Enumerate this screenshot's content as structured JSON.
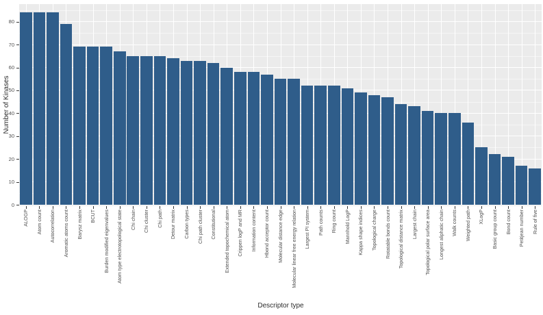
{
  "chart_data": {
    "type": "bar",
    "title": "",
    "xlabel": "Descriptor type",
    "ylabel": "Number of Kinases",
    "ylim": [
      0,
      88
    ],
    "yticks": [
      0,
      10,
      20,
      30,
      40,
      50,
      60,
      70,
      80
    ],
    "grid": "major-and-minor-white-on-gray",
    "legend": "none",
    "categories": [
      "ALOGP",
      "Atom count",
      "Autocorrelation",
      "Aromatic atoms count",
      "Barysz matrix",
      "BCUT",
      "Burden modified eigenvalues",
      "Atom type electrotopological state",
      "Chi chain",
      "Chi cluster",
      "Chi path",
      "Detour matrix",
      "Carbon types",
      "Chi path cluster",
      "Constitutional",
      "Extended topochemical atom",
      "Crippen logP and MR",
      "Information content",
      "Hbond acceptor count",
      "Molecular distance edge",
      "Molecular linear free energy relation",
      "Largest PI system",
      "Path counts",
      "Ring count",
      "Mannhold LogP",
      "Kappa shape indices",
      "Topological charge",
      "Rotatable bonds count",
      "Topological distance matrix",
      "Largest chain",
      "Topological polar surface area",
      "Longest aliphatic chain",
      "Walk counts",
      "Weighted path",
      "XLogP",
      "Basic group count",
      "Bond count",
      "Petitjean number",
      "Rule of five"
    ],
    "values": [
      84,
      84,
      84,
      79,
      69,
      69,
      69,
      67,
      65,
      65,
      65,
      64,
      63,
      63,
      62,
      60,
      58,
      58,
      57,
      55,
      55,
      52,
      52,
      52,
      51,
      49,
      48,
      47,
      44,
      43,
      41,
      40,
      40,
      36,
      25,
      22,
      21,
      17,
      16
    ],
    "colors": {
      "bar_fill": "#2F5D8A",
      "panel_background": "#EBEBEB",
      "grid_major": "#FFFFFF",
      "grid_minor": "#F5F5F5",
      "tick_text": "#4D4D4D",
      "axis_title_text": "#2B2B2B",
      "tick_mark": "#333333"
    }
  }
}
